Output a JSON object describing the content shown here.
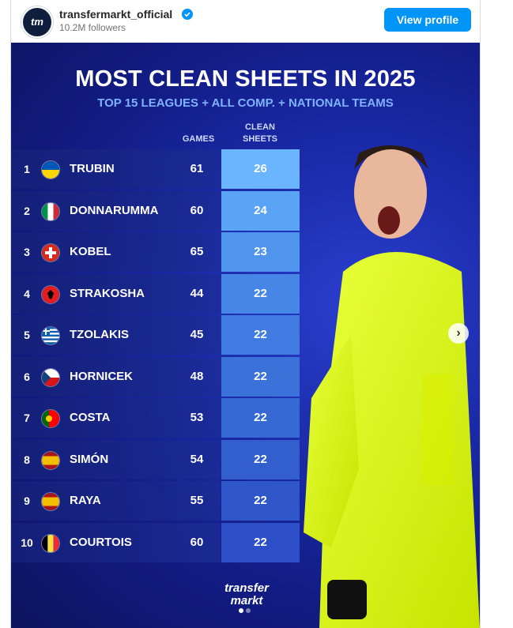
{
  "post": {
    "username": "transfermarkt_official",
    "followers": "10.2M followers",
    "view_profile": "View profile",
    "avatar_text": "tm"
  },
  "graphic": {
    "title": "MOST CLEAN SHEETS IN 2025",
    "subtitle": "TOP 15 LEAGUES + ALL COMP. + NATIONAL TEAMS",
    "col_games": "GAMES",
    "col_clean_1": "CLEAN",
    "col_clean_2": "SHEETS",
    "logo_line1": "transfer",
    "logo_line2": "markt",
    "rows": [
      {
        "rank": "1",
        "name": "TRUBIN",
        "games": "61",
        "clean": "26",
        "flag": "ukraine"
      },
      {
        "rank": "2",
        "name": "DONNARUMMA",
        "games": "60",
        "clean": "24",
        "flag": "italy"
      },
      {
        "rank": "3",
        "name": "KOBEL",
        "games": "65",
        "clean": "23",
        "flag": "switzerland"
      },
      {
        "rank": "4",
        "name": "STRAKOSHA",
        "games": "44",
        "clean": "22",
        "flag": "albania"
      },
      {
        "rank": "5",
        "name": "TZOLAKIS",
        "games": "45",
        "clean": "22",
        "flag": "greece"
      },
      {
        "rank": "6",
        "name": "HORNICEK",
        "games": "48",
        "clean": "22",
        "flag": "czechia"
      },
      {
        "rank": "7",
        "name": "COSTA",
        "games": "53",
        "clean": "22",
        "flag": "portugal"
      },
      {
        "rank": "8",
        "name": "SIMÓN",
        "games": "54",
        "clean": "22",
        "flag": "spain"
      },
      {
        "rank": "9",
        "name": "RAYA",
        "games": "55",
        "clean": "22",
        "flag": "spain"
      },
      {
        "rank": "10",
        "name": "COURTOIS",
        "games": "60",
        "clean": "22",
        "flag": "belgium"
      }
    ]
  },
  "colors": {
    "accent": "#0095f6",
    "cs_top": "#6bb4ff",
    "cs_bottom": "#2d4fc8"
  },
  "icons": {
    "verified": "verified-badge-icon",
    "next": "chevron-right-icon"
  }
}
